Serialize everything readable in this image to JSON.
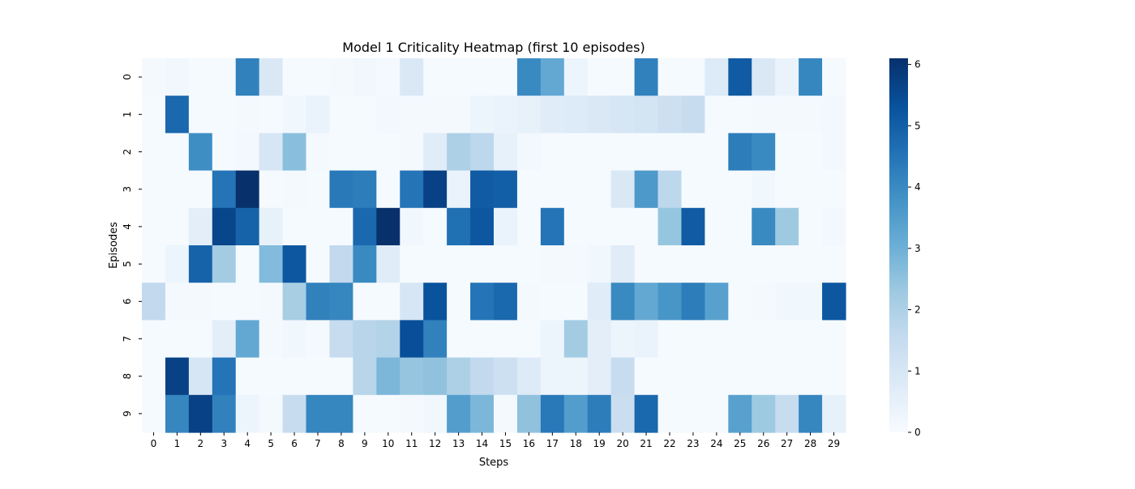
{
  "chart_data": {
    "type": "heatmap",
    "title": "Model 1 Criticality Heatmap (first 10 episodes)",
    "xlabel": "Steps",
    "ylabel": "Episodes",
    "x_categories": [
      "0",
      "1",
      "2",
      "3",
      "4",
      "5",
      "6",
      "7",
      "8",
      "9",
      "10",
      "11",
      "12",
      "13",
      "14",
      "15",
      "16",
      "17",
      "18",
      "19",
      "20",
      "21",
      "22",
      "23",
      "24",
      "25",
      "26",
      "27",
      "28",
      "29"
    ],
    "y_categories": [
      "0",
      "1",
      "2",
      "3",
      "4",
      "5",
      "6",
      "7",
      "8",
      "9"
    ],
    "values": [
      [
        0.1,
        0.2,
        0.05,
        0.05,
        4.2,
        0.9,
        0.05,
        0.05,
        0.1,
        0.2,
        0.1,
        0.9,
        0.05,
        0.05,
        0.05,
        0.05,
        4.0,
        3.2,
        0.3,
        0.05,
        0.05,
        4.2,
        0.05,
        0.05,
        0.8,
        5.1,
        0.9,
        0.4,
        4.1,
        0.05
      ],
      [
        0.05,
        4.8,
        0.05,
        0.05,
        0.1,
        0.05,
        0.2,
        0.4,
        0.05,
        0.05,
        0.15,
        0.1,
        0.1,
        0.1,
        0.3,
        0.4,
        0.5,
        0.7,
        0.8,
        0.9,
        1.0,
        1.1,
        1.3,
        1.5,
        0.05,
        0.05,
        0.1,
        0.1,
        0.1,
        0.15
      ],
      [
        0.05,
        0.05,
        3.9,
        0.05,
        0.15,
        1.0,
        2.6,
        0.1,
        0.05,
        0.05,
        0.05,
        0.1,
        0.7,
        2.0,
        1.7,
        0.5,
        0.15,
        0.05,
        0.05,
        0.05,
        0.05,
        0.05,
        0.05,
        0.05,
        0.05,
        4.3,
        4.0,
        0.05,
        0.05,
        0.15
      ],
      [
        0.05,
        0.05,
        0.05,
        4.5,
        6.1,
        0.05,
        0.1,
        0.05,
        4.4,
        4.3,
        0.05,
        4.5,
        5.7,
        0.4,
        5.1,
        5.0,
        0.05,
        0.05,
        0.05,
        0.05,
        0.9,
        3.6,
        1.7,
        0.05,
        0.05,
        0.05,
        0.2,
        0.05,
        0.05,
        0.05
      ],
      [
        0.05,
        0.05,
        0.6,
        5.6,
        4.9,
        0.5,
        0.05,
        0.05,
        0.05,
        4.8,
        6.1,
        0.2,
        0.05,
        4.6,
        5.2,
        0.4,
        0.05,
        4.5,
        0.05,
        0.05,
        0.05,
        0.05,
        2.4,
        5.1,
        0.05,
        0.05,
        4.0,
        2.3,
        0.05,
        0.15
      ],
      [
        0.05,
        0.3,
        4.9,
        2.2,
        0.05,
        2.7,
        5.2,
        0.05,
        1.6,
        4.0,
        0.7,
        0.05,
        0.05,
        0.05,
        0.05,
        0.05,
        0.05,
        0.1,
        0.1,
        0.2,
        0.7,
        0.05,
        0.05,
        0.05,
        0.05,
        0.05,
        0.05,
        0.05,
        0.05,
        0.05
      ],
      [
        1.6,
        0.1,
        0.1,
        0.05,
        0.05,
        0.1,
        2.1,
        4.2,
        4.1,
        0.05,
        0.05,
        1.0,
        5.3,
        0.05,
        4.5,
        4.8,
        0.1,
        0.05,
        0.05,
        0.7,
        4.0,
        3.2,
        3.7,
        4.3,
        3.4,
        0.05,
        0.1,
        0.2,
        0.2,
        5.2
      ],
      [
        0.05,
        0.05,
        0.05,
        0.6,
        3.2,
        0.1,
        0.2,
        0.1,
        1.5,
        1.8,
        1.9,
        5.4,
        4.2,
        0.05,
        0.05,
        0.05,
        0.05,
        0.3,
        2.2,
        0.6,
        0.3,
        0.4,
        0.05,
        0.05,
        0.05,
        0.05,
        0.05,
        0.05,
        0.05,
        0.05
      ],
      [
        0.05,
        5.7,
        1.0,
        4.5,
        0.05,
        0.05,
        0.05,
        0.05,
        0.05,
        1.8,
        2.8,
        2.4,
        2.5,
        2.0,
        1.6,
        1.3,
        0.8,
        0.3,
        0.3,
        0.6,
        1.5,
        0.05,
        0.05,
        0.05,
        0.05,
        0.05,
        0.05,
        0.05,
        0.05,
        0.05
      ],
      [
        0.05,
        4.1,
        5.7,
        4.2,
        0.3,
        0.1,
        1.5,
        4.1,
        4.1,
        0.05,
        0.05,
        0.1,
        0.2,
        3.5,
        2.8,
        0.1,
        2.5,
        4.4,
        3.5,
        4.3,
        1.4,
        4.8,
        0.05,
        0.05,
        0.05,
        3.4,
        2.3,
        1.5,
        4.1,
        0.5
      ]
    ],
    "vmin": 0,
    "vmax": 6.1,
    "colorbar_ticks": [
      "0",
      "1",
      "2",
      "3",
      "4",
      "5",
      "6"
    ],
    "colormap": [
      "#f7fbff",
      "#deebf7",
      "#c6dbef",
      "#9ecae1",
      "#6baed6",
      "#4292c6",
      "#2171b5",
      "#08519c",
      "#08306b"
    ],
    "grid": false,
    "legend": "colorbar-right"
  }
}
